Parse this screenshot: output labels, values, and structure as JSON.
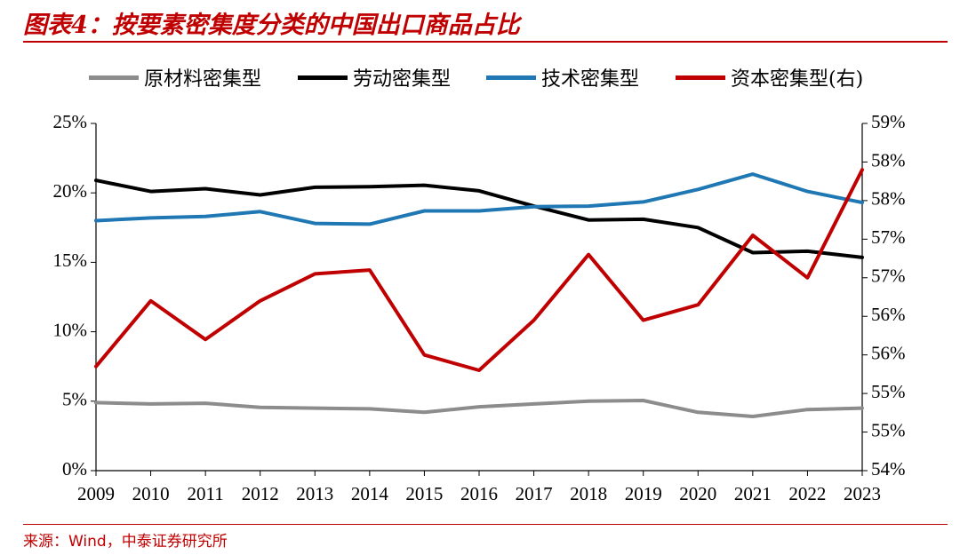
{
  "header": {
    "title": "图表4：按要素密集度分类的中国出口商品占比"
  },
  "footer": {
    "source": "来源：Wind，中泰证券研究所"
  },
  "chart_data": {
    "type": "line",
    "categories": [
      "2009",
      "2010",
      "2011",
      "2012",
      "2013",
      "2014",
      "2015",
      "2016",
      "2017",
      "2018",
      "2019",
      "2020",
      "2021",
      "2022",
      "2023"
    ],
    "y_left": {
      "ticks": [
        "0%",
        "5%",
        "10%",
        "15%",
        "20%",
        "25%"
      ],
      "range": [
        0,
        25
      ]
    },
    "y_right": {
      "ticks": [
        "54%",
        "55%",
        "55%",
        "56%",
        "56%",
        "57%",
        "57%",
        "58%",
        "58%",
        "59%"
      ],
      "range": [
        54.0,
        58.5
      ]
    },
    "legend_position": "top",
    "grid": false,
    "series": [
      {
        "name": "原材料密集型",
        "axis": "left",
        "color": "#8c8c8c",
        "values": [
          4.9,
          4.8,
          4.85,
          4.55,
          4.5,
          4.45,
          4.2,
          4.6,
          4.8,
          5.0,
          5.05,
          4.2,
          3.9,
          4.4,
          4.5
        ]
      },
      {
        "name": "劳动密集型",
        "axis": "left",
        "color": "#000000",
        "values": [
          20.9,
          20.1,
          20.3,
          19.85,
          20.4,
          20.45,
          20.55,
          20.15,
          19.05,
          18.05,
          18.1,
          17.5,
          15.7,
          15.8,
          15.35
        ]
      },
      {
        "name": "技术密集型",
        "axis": "left",
        "color": "#1f77b4",
        "values": [
          18.0,
          18.2,
          18.3,
          18.65,
          17.8,
          17.75,
          18.7,
          18.7,
          19.0,
          19.05,
          19.35,
          20.25,
          21.35,
          20.1,
          19.3
        ]
      },
      {
        "name": "资本密集型(右)",
        "axis": "right",
        "color": "#c00000",
        "values": [
          55.35,
          56.2,
          55.7,
          56.2,
          56.55,
          56.6,
          55.5,
          55.3,
          55.95,
          56.8,
          55.95,
          56.15,
          57.05,
          56.5,
          57.9
        ]
      }
    ]
  }
}
